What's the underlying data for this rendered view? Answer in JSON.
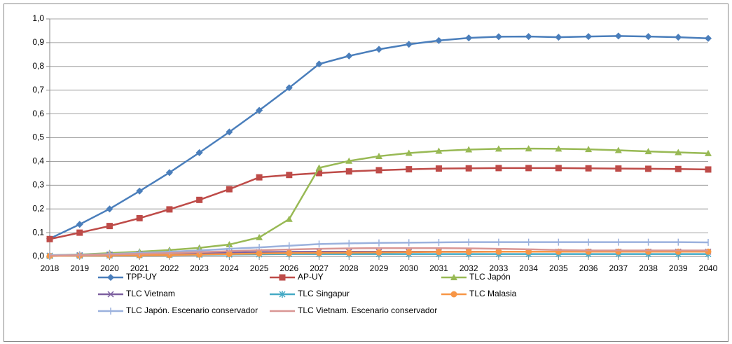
{
  "chart_data": {
    "type": "line",
    "categories": [
      "2018",
      "2019",
      "2020",
      "2021",
      "2022",
      "2023",
      "2024",
      "2025",
      "2026",
      "2027",
      "2028",
      "2029",
      "2030",
      "2031",
      "2032",
      "2033",
      "2034",
      "2035",
      "2036",
      "2037",
      "2038",
      "2039",
      "2040"
    ],
    "ylim": [
      0,
      1
    ],
    "yticks": [
      {
        "value": 0,
        "label": "0,0"
      },
      {
        "value": 0.1,
        "label": "0,1"
      },
      {
        "value": 0.2,
        "label": "0,2"
      },
      {
        "value": 0.3,
        "label": "0,3"
      },
      {
        "value": 0.4,
        "label": "0,4"
      },
      {
        "value": 0.5,
        "label": "0,5"
      },
      {
        "value": 0.6,
        "label": "0,6"
      },
      {
        "value": 0.7,
        "label": "0,7"
      },
      {
        "value": 0.8,
        "label": "0,8"
      },
      {
        "value": 0.9,
        "label": "0,9"
      },
      {
        "value": 1,
        "label": "1,0"
      }
    ],
    "grid": true,
    "series": [
      {
        "name": "TPP-UY",
        "color": "#4a7ebb",
        "marker": "diamond",
        "values": [
          0.075,
          0.135,
          0.2,
          0.275,
          0.353,
          0.437,
          0.524,
          0.615,
          0.71,
          0.81,
          0.844,
          0.872,
          0.893,
          0.909,
          0.92,
          0.925,
          0.926,
          0.923,
          0.926,
          0.928,
          0.926,
          0.923,
          0.918
        ]
      },
      {
        "name": "AP-UY",
        "color": "#be4b48",
        "marker": "square",
        "values": [
          0.073,
          0.1,
          0.128,
          0.161,
          0.198,
          0.238,
          0.283,
          0.333,
          0.343,
          0.351,
          0.358,
          0.363,
          0.367,
          0.37,
          0.371,
          0.372,
          0.372,
          0.372,
          0.371,
          0.37,
          0.369,
          0.368,
          0.366
        ]
      },
      {
        "name": "TLC Japón",
        "color": "#98b954",
        "marker": "triangle",
        "values": [
          0.005,
          0.008,
          0.014,
          0.02,
          0.027,
          0.036,
          0.05,
          0.08,
          0.157,
          0.373,
          0.402,
          0.422,
          0.435,
          0.444,
          0.45,
          0.453,
          0.454,
          0.453,
          0.451,
          0.447,
          0.442,
          0.438,
          0.434
        ]
      },
      {
        "name": "TLC Vietnam",
        "color": "#7d60a0",
        "marker": "x",
        "values": [
          0.003,
          0.005,
          0.008,
          0.01,
          0.012,
          0.014,
          0.016,
          0.018,
          0.019,
          0.02,
          0.02,
          0.02,
          0.02,
          0.02,
          0.02,
          0.02,
          0.02,
          0.02,
          0.02,
          0.02,
          0.02,
          0.02,
          0.02
        ]
      },
      {
        "name": "TLC Singapur",
        "color": "#46aac5",
        "marker": "star",
        "values": [
          0.002,
          0.003,
          0.004,
          0.005,
          0.006,
          0.007,
          0.008,
          0.009,
          0.01,
          0.01,
          0.01,
          0.01,
          0.01,
          0.01,
          0.01,
          0.01,
          0.01,
          0.01,
          0.01,
          0.01,
          0.01,
          0.01,
          0.01
        ]
      },
      {
        "name": "TLC Malasia",
        "color": "#f79646",
        "marker": "circle",
        "values": [
          0.002,
          0.003,
          0.004,
          0.005,
          0.006,
          0.008,
          0.01,
          0.012,
          0.014,
          0.015,
          0.016,
          0.017,
          0.018,
          0.019,
          0.019,
          0.02,
          0.02,
          0.02,
          0.02,
          0.02,
          0.02,
          0.02,
          0.02
        ]
      },
      {
        "name": "TLC Japón. Escenario conservador",
        "color": "#9bb1dd",
        "marker": "plus",
        "values": [
          0.005,
          0.007,
          0.01,
          0.015,
          0.02,
          0.025,
          0.032,
          0.038,
          0.045,
          0.052,
          0.055,
          0.057,
          0.058,
          0.059,
          0.06,
          0.06,
          0.06,
          0.06,
          0.06,
          0.06,
          0.06,
          0.06,
          0.059
        ]
      },
      {
        "name": "TLC Vietnam. Escenario conservador",
        "color": "#d99694",
        "marker": "none",
        "values": [
          0.003,
          0.005,
          0.008,
          0.011,
          0.014,
          0.018,
          0.022,
          0.026,
          0.029,
          0.032,
          0.034,
          0.035,
          0.035,
          0.035,
          0.034,
          0.032,
          0.03,
          0.027,
          0.025,
          0.025,
          0.025,
          0.025,
          0.025
        ]
      }
    ]
  }
}
